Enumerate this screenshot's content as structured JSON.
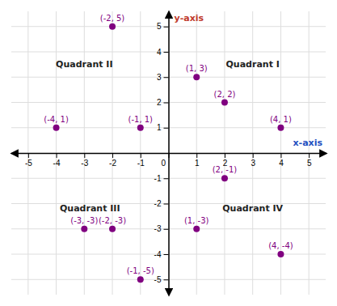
{
  "chart_data": {
    "type": "scatter",
    "x": [
      1,
      2,
      4,
      -1,
      -2,
      -4,
      -2,
      -3,
      -1,
      2,
      1,
      4
    ],
    "values": [
      3,
      2,
      1,
      1,
      5,
      1,
      -3,
      -3,
      -5,
      -1,
      -3,
      -4
    ],
    "value_labels": [
      "(1, 3)",
      "(2, 2)",
      "(4, 1)",
      "(-1, 1)",
      "(-2, 5)",
      "(-4, 1)",
      "(-2, -3)",
      "(-3, -3)",
      "(-1, -5)",
      "(2, -1)",
      "(1, -3)",
      "(4, -4)"
    ],
    "color": "#800080",
    "xlabel": "x-axis",
    "ylabel": "y-axis",
    "annotations": [
      {
        "text": "Quadrant I",
        "x": 3.0,
        "y": 3.5
      },
      {
        "text": "Quadrant II",
        "x": -3.0,
        "y": 3.5
      },
      {
        "text": "Quadrant III",
        "x": -2.8,
        "y": -2.2
      },
      {
        "text": "Quadrant IV",
        "x": 3.0,
        "y": -2.2
      }
    ],
    "xlim": [
      -5.6,
      5.6
    ],
    "ylim": [
      -5.6,
      5.6
    ],
    "xticks": [
      -5,
      -4,
      -3,
      -2,
      -1,
      0,
      1,
      2,
      3,
      4,
      5
    ],
    "yticks": [
      -5,
      -4,
      -3,
      -2,
      -1,
      1,
      2,
      3,
      4,
      5
    ],
    "grid": true,
    "data_labels": true
  }
}
